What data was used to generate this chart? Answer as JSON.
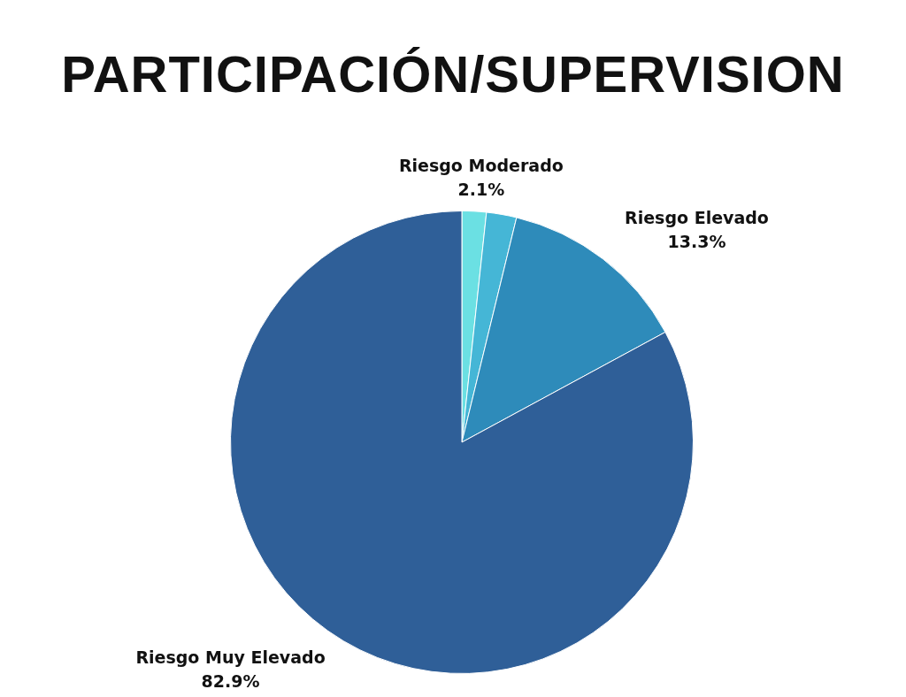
{
  "chart_data": {
    "type": "pie",
    "title": "PARTICIPACIÓN/SUPERVISION",
    "categories": [
      null,
      "Riesgo Moderado",
      "Riesgo Elevado",
      "Riesgo Muy Elevado"
    ],
    "values": [
      1.7,
      2.1,
      13.3,
      82.9
    ],
    "colors": [
      "#6be0e3",
      "#45b6d6",
      "#2e8bba",
      "#2f5f98"
    ],
    "value_labels": [
      null,
      "2.1%",
      "13.3%",
      "82.9%"
    ]
  }
}
